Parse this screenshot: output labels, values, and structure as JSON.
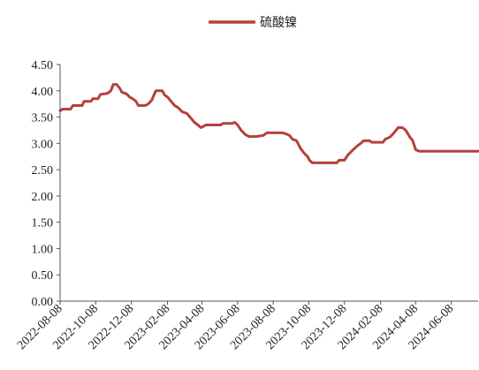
{
  "chart_data": {
    "type": "line",
    "title": "",
    "xlabel": "",
    "ylabel": "",
    "ylim": [
      0,
      4.5
    ],
    "yticks": [
      0.0,
      0.5,
      1.0,
      1.5,
      2.0,
      2.5,
      3.0,
      3.5,
      4.0,
      4.5
    ],
    "ytick_labels": [
      "0.00",
      "0.50",
      "1.00",
      "1.50",
      "2.00",
      "2.50",
      "3.00",
      "3.50",
      "4.00",
      "4.50"
    ],
    "xlim": [
      "2022-08-08",
      "2024-07-24"
    ],
    "xtick_labels": [
      "2022-08-08",
      "2022-10-08",
      "2022-12-08",
      "2023-02-08",
      "2023-04-08",
      "2023-06-08",
      "2023-08-08",
      "2023-10-08",
      "2023-12-08",
      "2024-02-08",
      "2024-04-08",
      "2024-06-08"
    ],
    "grid": false,
    "legend": "top-center",
    "colors": {
      "series": "#b5403d",
      "axis": "#555555"
    },
    "series": [
      {
        "name": "硫酸镍",
        "points": [
          [
            "2022-08-08",
            3.62
          ],
          [
            "2022-08-12",
            3.65
          ],
          [
            "2022-08-26",
            3.65
          ],
          [
            "2022-08-30",
            3.72
          ],
          [
            "2022-09-15",
            3.72
          ],
          [
            "2022-09-18",
            3.8
          ],
          [
            "2022-09-30",
            3.8
          ],
          [
            "2022-10-03",
            3.85
          ],
          [
            "2022-10-12",
            3.85
          ],
          [
            "2022-10-16",
            3.93
          ],
          [
            "2022-10-28",
            3.95
          ],
          [
            "2022-11-03",
            4.0
          ],
          [
            "2022-11-07",
            4.12
          ],
          [
            "2022-11-13",
            4.12
          ],
          [
            "2022-11-18",
            4.05
          ],
          [
            "2022-11-22",
            3.97
          ],
          [
            "2022-11-28",
            3.95
          ],
          [
            "2022-12-01",
            3.93
          ],
          [
            "2022-12-05",
            3.88
          ],
          [
            "2022-12-10",
            3.85
          ],
          [
            "2022-12-16",
            3.8
          ],
          [
            "2022-12-20",
            3.72
          ],
          [
            "2023-01-01",
            3.72
          ],
          [
            "2023-01-06",
            3.75
          ],
          [
            "2023-01-12",
            3.82
          ],
          [
            "2023-01-15",
            3.9
          ],
          [
            "2023-01-19",
            4.0
          ],
          [
            "2023-01-30",
            4.0
          ],
          [
            "2023-02-03",
            3.92
          ],
          [
            "2023-02-08",
            3.88
          ],
          [
            "2023-02-14",
            3.8
          ],
          [
            "2023-02-20",
            3.72
          ],
          [
            "2023-02-26",
            3.68
          ],
          [
            "2023-03-05",
            3.6
          ],
          [
            "2023-03-13",
            3.57
          ],
          [
            "2023-03-20",
            3.48
          ],
          [
            "2023-03-26",
            3.4
          ],
          [
            "2023-04-01",
            3.35
          ],
          [
            "2023-04-06",
            3.3
          ],
          [
            "2023-04-10",
            3.32
          ],
          [
            "2023-04-15",
            3.35
          ],
          [
            "2023-05-10",
            3.35
          ],
          [
            "2023-05-14",
            3.38
          ],
          [
            "2023-05-30",
            3.38
          ],
          [
            "2023-06-03",
            3.4
          ],
          [
            "2023-06-08",
            3.35
          ],
          [
            "2023-06-14",
            3.25
          ],
          [
            "2023-06-22",
            3.16
          ],
          [
            "2023-06-28",
            3.13
          ],
          [
            "2023-07-10",
            3.13
          ],
          [
            "2023-07-22",
            3.15
          ],
          [
            "2023-07-28",
            3.2
          ],
          [
            "2023-08-24",
            3.2
          ],
          [
            "2023-08-30",
            3.18
          ],
          [
            "2023-09-05",
            3.15
          ],
          [
            "2023-09-10",
            3.08
          ],
          [
            "2023-09-17",
            3.05
          ],
          [
            "2023-09-24",
            2.9
          ],
          [
            "2023-10-01",
            2.8
          ],
          [
            "2023-10-06",
            2.75
          ],
          [
            "2023-10-09",
            2.68
          ],
          [
            "2023-10-14",
            2.63
          ],
          [
            "2023-11-25",
            2.63
          ],
          [
            "2023-11-29",
            2.68
          ],
          [
            "2023-12-08",
            2.68
          ],
          [
            "2023-12-14",
            2.78
          ],
          [
            "2023-12-23",
            2.88
          ],
          [
            "2023-12-30",
            2.95
          ],
          [
            "2024-01-05",
            3.0
          ],
          [
            "2024-01-10",
            3.05
          ],
          [
            "2024-01-20",
            3.05
          ],
          [
            "2024-01-24",
            3.02
          ],
          [
            "2024-02-12",
            3.02
          ],
          [
            "2024-02-16",
            3.08
          ],
          [
            "2024-02-24",
            3.12
          ],
          [
            "2024-03-02",
            3.2
          ],
          [
            "2024-03-09",
            3.3
          ],
          [
            "2024-03-16",
            3.3
          ],
          [
            "2024-03-22",
            3.25
          ],
          [
            "2024-03-29",
            3.12
          ],
          [
            "2024-04-03",
            3.05
          ],
          [
            "2024-04-08",
            2.88
          ],
          [
            "2024-04-14",
            2.85
          ],
          [
            "2024-07-24",
            2.85
          ]
        ]
      }
    ]
  }
}
